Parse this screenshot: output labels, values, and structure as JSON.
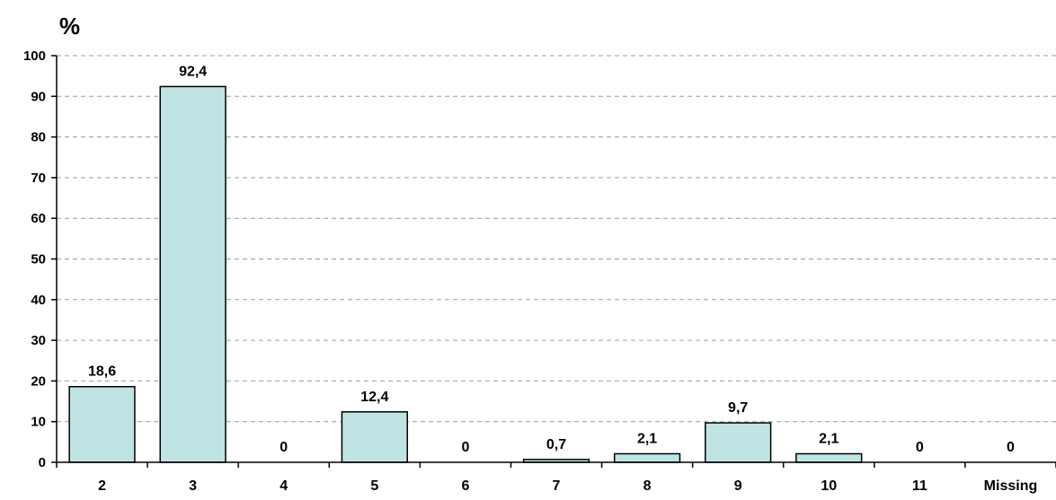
{
  "chart_data": {
    "type": "bar",
    "ylabel": "%",
    "ylim": [
      0,
      100
    ],
    "yticks": [
      "0",
      "10",
      "20",
      "30",
      "40",
      "50",
      "60",
      "70",
      "80",
      "90",
      "100"
    ],
    "grid": "horizontal dashed",
    "categories": [
      "2",
      "3",
      "4",
      "5",
      "6",
      "7",
      "8",
      "9",
      "10",
      "11",
      "Missing"
    ],
    "values": [
      18.6,
      92.4,
      0,
      12.4,
      0,
      0.7,
      2.1,
      9.7,
      2.1,
      0,
      0
    ],
    "data_labels": [
      "18,6",
      "92,4",
      "0",
      "12,4",
      "0",
      "0,7",
      "2,1",
      "9,7",
      "2,1",
      "0",
      "0"
    ],
    "colors": {
      "bar_fill": "#c0e4e4",
      "bar_stroke": "#000000",
      "grid": "#9a9a9a"
    }
  }
}
